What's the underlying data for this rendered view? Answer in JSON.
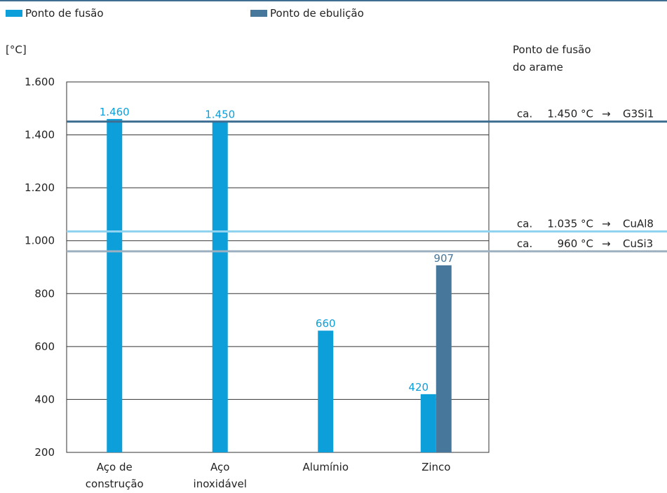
{
  "chart_data": {
    "type": "bar",
    "categories": [
      [
        "Aço de",
        "construção"
      ],
      [
        "Aço",
        "inoxidável"
      ],
      [
        "Alumínio"
      ],
      [
        "Zinco"
      ]
    ],
    "series": [
      {
        "name": "Ponto de fusão",
        "color": "#0d9fd9",
        "values": [
          1460,
          1450,
          660,
          420
        ],
        "labels": [
          "1.460",
          "1.450",
          "660",
          "420"
        ]
      },
      {
        "name": "Ponto de ebulição",
        "color": "#47779b",
        "values": [
          null,
          null,
          null,
          907
        ],
        "labels": [
          "",
          "",
          "",
          "907"
        ]
      }
    ],
    "ylabel": "[°C]",
    "ylim": [
      200,
      1600
    ],
    "yticks": [
      200,
      400,
      600,
      800,
      1000,
      1200,
      1400,
      1600
    ],
    "yticklabels": [
      "200",
      "400",
      "600",
      "800",
      "1.000",
      "1.200",
      "1.400",
      "1.600"
    ],
    "grid": true,
    "legend_position": "top",
    "reference_heading": [
      "Ponto de fusão",
      "do arame"
    ],
    "reference_lines": [
      {
        "value": 1450,
        "prefix": "ca.",
        "value_label": "1.450 °C",
        "arrow": "→",
        "wire": "G3Si1",
        "color": "#3f6e93"
      },
      {
        "value": 1035,
        "prefix": "ca.",
        "value_label": "1.035 °C",
        "arrow": "→",
        "wire": "CuAl8",
        "color": "#8fd3f0"
      },
      {
        "value": 960,
        "prefix": "ca.",
        "value_label": "960 °C",
        "arrow": "→",
        "wire": "CuSi3",
        "color": "#9cb0c1"
      }
    ],
    "top_rule_color": "#3f6e93"
  }
}
